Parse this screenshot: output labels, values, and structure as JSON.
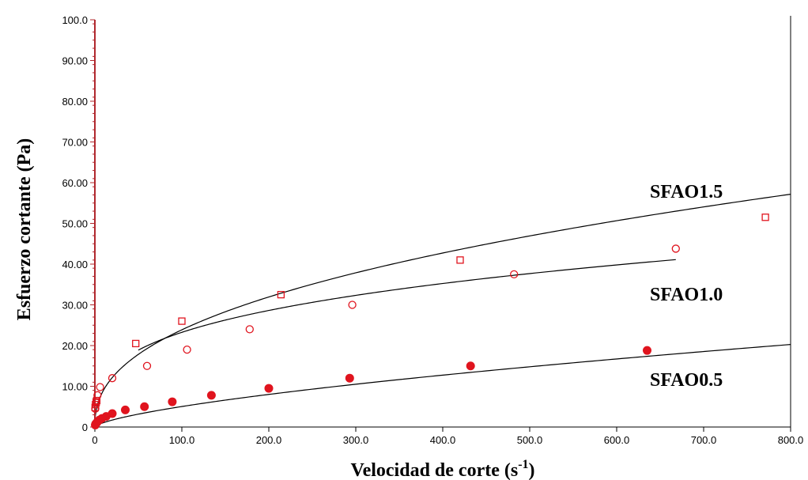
{
  "chart_data": {
    "type": "scatter",
    "title": "",
    "xlabel": "Velocidad de corte (s",
    "xlabel_sup": "-1",
    "xlabel_close": ")",
    "ylabel": "Esfuerzo cortante (Pa)",
    "xlim": [
      0,
      800
    ],
    "ylim": [
      0,
      100
    ],
    "grid": false,
    "xticks": [
      "0",
      "100.0",
      "200.0",
      "300.0",
      "400.0",
      "500.0",
      "600.0",
      "700.0",
      "800.0"
    ],
    "yticks": [
      "0",
      "10.00",
      "20.00",
      "30.00",
      "40.00",
      "50.00",
      "60.00",
      "70.00",
      "80.00",
      "90.00",
      "100.0"
    ],
    "colors": {
      "points": "#e0141e",
      "fit": "#000000",
      "left_axis": "#b0282e"
    },
    "series": [
      {
        "name": "SFAO1.5",
        "marker": "square-open",
        "x": [
          0.3,
          0.8,
          1.5,
          2.2,
          47,
          100,
          214,
          420,
          771
        ],
        "y": [
          4.8,
          5.5,
          6.0,
          6.5,
          20.5,
          26.0,
          32.5,
          41.0,
          51.5
        ],
        "fit": {
          "k": 3.45,
          "n": 0.42,
          "x0": 0,
          "x1": 800
        }
      },
      {
        "name": "SFAO1.0",
        "marker": "circle-open",
        "x": [
          0.5,
          1.5,
          3,
          6,
          20,
          60,
          106,
          178,
          296,
          482,
          668
        ],
        "y": [
          4.5,
          6.0,
          7.8,
          9.8,
          12.0,
          15.0,
          19.0,
          24.0,
          30.0,
          37.5,
          43.8
        ],
        "fit": {
          "k": 5.84,
          "n": 0.3,
          "x0": 50,
          "x1": 668
        }
      },
      {
        "name": "SFAO0.5",
        "marker": "circle-filled",
        "x": [
          0.5,
          1,
          2,
          3,
          5,
          8,
          13,
          20,
          35,
          57,
          89,
          134,
          200,
          293,
          432,
          635
        ],
        "y": [
          0.5,
          0.8,
          1.0,
          1.3,
          1.7,
          2.1,
          2.6,
          3.3,
          4.2,
          5.0,
          6.2,
          7.8,
          9.5,
          12.0,
          15.0,
          18.8
        ],
        "fit": {
          "k": 0.23,
          "n": 0.67,
          "x0": 0,
          "x1": 800
        }
      }
    ],
    "labels": [
      "SFAO1.5",
      "SFAO1.0",
      "SFAO0.5"
    ]
  }
}
